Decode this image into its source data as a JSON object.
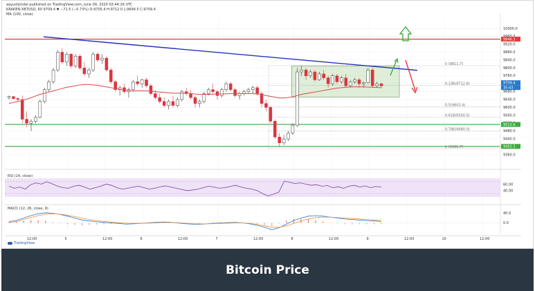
{
  "header": {
    "line1": "aayushjindal published on TradingView.com, June 09, 2020 02:44:26 UTC",
    "line2": "KRAKEN:XBTUSD, 60  9709.4  ▼ −71.5 (−0.73%)  O:9705.4  H:9712.0  L:9694.5  C:9709.4",
    "indicator": "MA (100, close)"
  },
  "caption": "Bitcoin Price",
  "brand": "TradingView",
  "colors": {
    "up": "#e0e0e0",
    "down": "#d9363f",
    "ma": "#e05454",
    "trendline": "#2233bb",
    "box": "#b7d9a9",
    "horiz_red": "#e03c3c",
    "horiz_green": "#3dab3d",
    "arrow_green": "#2eaa2e",
    "arrow_red": "#e03030",
    "rsi": "#7a3f9e",
    "macd": "#2a79c9",
    "signal": "#f08d35",
    "caption_bg": "#2a3642"
  },
  "chart_data": [
    {
      "type": "candlestick",
      "title": "",
      "xlabel": "",
      "ylabel": "",
      "ylim": [
        9300,
        10050
      ],
      "x_ticks": [
        "12:00",
        "5",
        "12:00",
        "6",
        "12:00",
        "7",
        "12:00",
        "8",
        "12:00",
        "9",
        "12:00",
        "10",
        "12:00"
      ],
      "y_ticks": [
        9360.0,
        9400.0,
        9440.0,
        9480.0,
        9520.0,
        9560.0,
        9600.0,
        9640.0,
        9680.0,
        9720.0,
        9760.0,
        9800.0,
        9840.0,
        9880.0,
        9920.0,
        9960.0,
        10000.0
      ],
      "last_price": "9709.4",
      "price_label_2": "9709.4",
      "price_label_3": "35:43",
      "candles": [
        [
          9650,
          9660,
          9640,
          9655
        ],
        [
          9655,
          9658,
          9640,
          9645
        ],
        [
          9645,
          9652,
          9630,
          9640
        ],
        [
          9640,
          9660,
          9520,
          9540
        ],
        [
          9540,
          9580,
          9500,
          9520
        ],
        [
          9520,
          9540,
          9480,
          9530
        ],
        [
          9530,
          9560,
          9520,
          9550
        ],
        [
          9550,
          9640,
          9545,
          9630
        ],
        [
          9630,
          9700,
          9620,
          9690
        ],
        [
          9690,
          9740,
          9680,
          9730
        ],
        [
          9730,
          9800,
          9720,
          9790
        ],
        [
          9790,
          9890,
          9780,
          9880
        ],
        [
          9880,
          9900,
          9820,
          9830
        ],
        [
          9830,
          9880,
          9810,
          9870
        ],
        [
          9870,
          9875,
          9800,
          9810
        ],
        [
          9810,
          9870,
          9800,
          9860
        ],
        [
          9860,
          9870,
          9790,
          9800
        ],
        [
          9800,
          9830,
          9760,
          9770
        ],
        [
          9770,
          9800,
          9750,
          9790
        ],
        [
          9790,
          9880,
          9780,
          9870
        ],
        [
          9870,
          9880,
          9830,
          9840
        ],
        [
          9840,
          9870,
          9820,
          9850
        ],
        [
          9850,
          9860,
          9780,
          9790
        ],
        [
          9790,
          9800,
          9720,
          9730
        ],
        [
          9730,
          9740,
          9680,
          9690
        ],
        [
          9690,
          9710,
          9660,
          9700
        ],
        [
          9700,
          9720,
          9670,
          9680
        ],
        [
          9680,
          9700,
          9650,
          9690
        ],
        [
          9690,
          9740,
          9680,
          9730
        ],
        [
          9730,
          9760,
          9710,
          9720
        ],
        [
          9720,
          9745,
          9700,
          9740
        ],
        [
          9740,
          9750,
          9700,
          9710
        ],
        [
          9710,
          9720,
          9660,
          9670
        ],
        [
          9670,
          9690,
          9640,
          9650
        ],
        [
          9650,
          9670,
          9620,
          9630
        ],
        [
          9630,
          9650,
          9600,
          9610
        ],
        [
          9610,
          9640,
          9590,
          9630
        ],
        [
          9630,
          9660,
          9600,
          9610
        ],
        [
          9610,
          9650,
          9600,
          9640
        ],
        [
          9640,
          9690,
          9630,
          9680
        ],
        [
          9680,
          9700,
          9660,
          9670
        ],
        [
          9670,
          9690,
          9640,
          9650
        ],
        [
          9650,
          9660,
          9600,
          9620
        ],
        [
          9620,
          9640,
          9600,
          9630
        ],
        [
          9630,
          9680,
          9620,
          9670
        ],
        [
          9670,
          9700,
          9660,
          9690
        ],
        [
          9690,
          9720,
          9670,
          9680
        ],
        [
          9680,
          9690,
          9640,
          9660
        ],
        [
          9660,
          9700,
          9650,
          9690
        ],
        [
          9690,
          9730,
          9680,
          9720
        ],
        [
          9720,
          9730,
          9680,
          9690
        ],
        [
          9690,
          9700,
          9650,
          9660
        ],
        [
          9660,
          9680,
          9640,
          9670
        ],
        [
          9670,
          9690,
          9660,
          9680
        ],
        [
          9680,
          9700,
          9670,
          9690
        ],
        [
          9690,
          9710,
          9670,
          9700
        ],
        [
          9700,
          9710,
          9660,
          9670
        ],
        [
          9670,
          9680,
          9600,
          9620
        ],
        [
          9620,
          9640,
          9580,
          9600
        ],
        [
          9600,
          9610,
          9520,
          9530
        ],
        [
          9530,
          9540,
          9440,
          9450
        ],
        [
          9450,
          9470,
          9400,
          9420
        ],
        [
          9420,
          9460,
          9410,
          9440
        ],
        [
          9440,
          9480,
          9430,
          9470
        ],
        [
          9470,
          9520,
          9460,
          9510
        ],
        [
          9510,
          9800,
          9500,
          9780
        ],
        [
          9780,
          9810,
          9760,
          9790
        ],
        [
          9790,
          9800,
          9740,
          9760
        ],
        [
          9760,
          9790,
          9750,
          9780
        ],
        [
          9780,
          9790,
          9730,
          9740
        ],
        [
          9740,
          9780,
          9735,
          9770
        ],
        [
          9770,
          9790,
          9740,
          9750
        ],
        [
          9750,
          9760,
          9700,
          9720
        ],
        [
          9720,
          9770,
          9710,
          9760
        ],
        [
          9760,
          9770,
          9720,
          9730
        ],
        [
          9730,
          9760,
          9720,
          9750
        ],
        [
          9750,
          9770,
          9700,
          9710
        ],
        [
          9710,
          9740,
          9700,
          9730
        ],
        [
          9730,
          9750,
          9720,
          9740
        ],
        [
          9740,
          9750,
          9700,
          9720
        ],
        [
          9720,
          9730,
          9700,
          9725
        ],
        [
          9725,
          9800,
          9720,
          9790
        ],
        [
          9790,
          9800,
          9700,
          9710
        ],
        [
          9710,
          9730,
          9700,
          9720
        ],
        [
          9720,
          9725,
          9700,
          9709
        ]
      ],
      "ma100": [
        9620,
        9625,
        9630,
        9636,
        9642,
        9650,
        9658,
        9666,
        9672,
        9678,
        9684,
        9690,
        9696,
        9702,
        9706,
        9710,
        9714,
        9716,
        9716,
        9714,
        9712,
        9708,
        9704,
        9700,
        9696,
        9692,
        9688,
        9686,
        9684,
        9684,
        9684,
        9684,
        9682,
        9680,
        9678,
        9676,
        9674,
        9672,
        9672,
        9672,
        9672,
        9670,
        9668,
        9666,
        9666,
        9666,
        9667,
        9668,
        9668,
        9669,
        9670,
        9670,
        9670,
        9670,
        9670,
        9670,
        9668,
        9664,
        9660,
        9656,
        9652,
        9648,
        9648,
        9650,
        9654,
        9660,
        9666,
        9670,
        9674,
        9678,
        9682,
        9686,
        9690,
        9694,
        9698,
        9700,
        9702,
        9704,
        9704,
        9704,
        9704,
        9703,
        9702,
        9701,
        9700
      ],
      "fib_levels": [
        {
          "label": "0 (9811.7)",
          "value": 9811.7
        },
        {
          "label": "0.236(9712.6)",
          "value": 9712.6
        },
        {
          "label": "0.5(9603.4)",
          "value": 9603.4
        },
        {
          "label": "0.618(9550.5)",
          "value": 9550.5
        },
        {
          "label": "0.786(9480.0)",
          "value": 9480.0
        },
        {
          "label": "1 (9391.7)",
          "value": 9391.7
        }
      ],
      "horizontal_lines": [
        {
          "value": 9946.3,
          "color": "red",
          "label": "9946.3"
        },
        {
          "value": 9513.6,
          "color": "green",
          "label": "9513.6"
        },
        {
          "value": 9402.3,
          "color": "green",
          "label": "9402.3"
        }
      ]
    },
    {
      "type": "line",
      "title": "RSI (14, close)",
      "ylim": [
        0,
        100
      ],
      "y_ticks": [
        "60.00",
        "40.00"
      ],
      "series": [
        {
          "values": [
            55,
            48,
            52,
            45,
            60,
            66,
            62,
            70,
            63,
            55,
            50,
            48,
            55,
            58,
            52,
            45,
            50,
            55,
            62,
            58,
            50,
            45,
            48,
            52,
            55,
            50,
            45,
            48,
            53,
            56,
            52,
            48,
            44,
            40,
            42,
            45,
            50,
            55,
            52,
            48,
            50,
            54,
            58,
            52,
            48,
            45,
            40,
            30,
            22,
            28,
            35,
            72,
            68,
            64,
            66,
            62,
            58,
            60,
            55,
            57,
            50,
            53,
            48,
            55,
            58,
            52,
            56,
            50,
            54,
            52
          ]
        }
      ]
    },
    {
      "type": "line",
      "title": "MACD (12, 26, close, 9)",
      "y_ticks": [
        "40.0",
        "0.0"
      ],
      "series": [
        {
          "values": [
            5,
            10,
            20,
            30,
            38,
            42,
            40,
            35,
            28,
            20,
            12,
            8,
            5,
            2,
            0,
            -2,
            -5,
            -4,
            -2,
            0,
            2,
            4,
            3,
            0,
            -3,
            -5,
            -6,
            -4,
            -2,
            0,
            1,
            2,
            0,
            -4,
            -10,
            -18,
            -28,
            -20,
            -5,
            10,
            20,
            28,
            30,
            28,
            24,
            20,
            16,
            14,
            12,
            10,
            8,
            6
          ]
        },
        {
          "values": [
            2,
            6,
            14,
            22,
            30,
            36,
            38,
            36,
            32,
            26,
            20,
            14,
            10,
            6,
            3,
            1,
            -1,
            -2,
            -2,
            -1,
            0,
            2,
            2,
            1,
            -1,
            -3,
            -4,
            -4,
            -3,
            -2,
            -1,
            0,
            0,
            -2,
            -6,
            -12,
            -18,
            -18,
            -12,
            -2,
            8,
            16,
            22,
            24,
            24,
            22,
            20,
            18,
            16,
            14,
            12,
            10
          ]
        }
      ],
      "histogram": [
        3,
        4,
        6,
        8,
        8,
        6,
        2,
        -1,
        -4,
        -6,
        -8,
        -6,
        -5,
        -4,
        -3,
        -3,
        -4,
        -2,
        0,
        1,
        2,
        2,
        1,
        -1,
        -2,
        -2,
        -2,
        0,
        1,
        2,
        2,
        2,
        0,
        -2,
        -4,
        -6,
        -10,
        -2,
        7,
        12,
        12,
        12,
        8,
        4,
        0,
        -2,
        -4,
        -4,
        -4,
        -4,
        -4,
        -4
      ]
    }
  ]
}
